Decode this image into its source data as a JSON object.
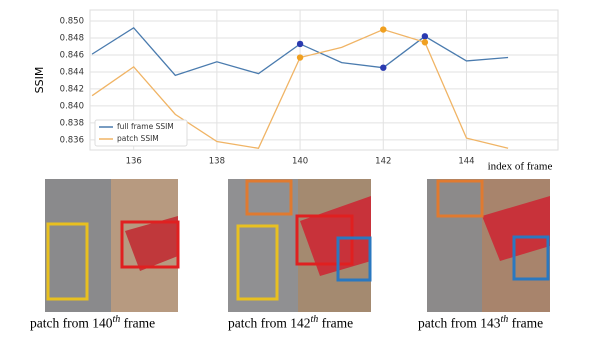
{
  "chart_data": {
    "type": "line",
    "y_label": "SSIM",
    "x_label": "index of frame",
    "x": [
      135,
      136,
      137,
      138,
      139,
      140,
      141,
      142,
      143,
      144,
      145
    ],
    "series": [
      {
        "name": "full frame SSIM",
        "color": "#4a7bae",
        "values": [
          0.8461,
          0.8492,
          0.8436,
          0.8452,
          0.8438,
          0.8473,
          0.8451,
          0.8445,
          0.8482,
          0.8453,
          0.8457
        ]
      },
      {
        "name": "patch SSIM",
        "color": "#f0b465",
        "values": [
          0.8412,
          0.8446,
          0.839,
          0.8358,
          0.835,
          0.8457,
          0.8469,
          0.849,
          0.8475,
          0.8362,
          0.835
        ]
      }
    ],
    "markers_at": [
      140,
      142,
      143
    ],
    "xlim": [
      134.95,
      146.2
    ],
    "ylim": [
      0.8348,
      0.8513
    ],
    "xticks": [
      136,
      138,
      140,
      142,
      144
    ],
    "yticks": [
      0.836,
      0.838,
      {
        "value": 0.84,
        "label": "0.840"
      },
      0.842,
      0.844,
      0.846,
      0.848,
      {
        "value": 0.85,
        "label": "0.850"
      }
    ],
    "grid": true,
    "legend": "lower-left"
  },
  "captions": [
    {
      "prefix": "patch from",
      "frame": "140",
      "sup": "th",
      "suffix": "frame"
    },
    {
      "prefix": "patch from",
      "frame": "142",
      "sup": "th",
      "suffix": "frame"
    },
    {
      "prefix": "patch from",
      "frame": "143",
      "sup": "th",
      "suffix": "frame"
    }
  ]
}
